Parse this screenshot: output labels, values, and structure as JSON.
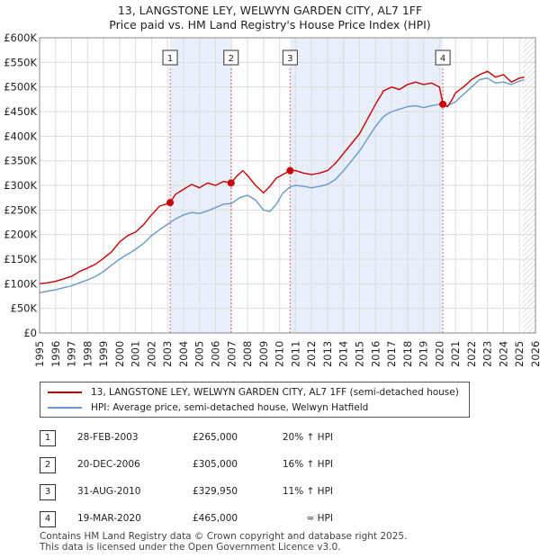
{
  "title_line1": "13, LANGSTONE LEY, WELWYN GARDEN CITY, AL7 1FF",
  "title_line2": "Price paid vs. HM Land Registry's House Price Index (HPI)",
  "colors": {
    "property": "#cc0000",
    "hpi": "#6699cc",
    "shade": "#e8eefa",
    "grid": "#dddddd",
    "vline": "#dd6666"
  },
  "chart_data": {
    "type": "line",
    "x_range": [
      1995,
      2026
    ],
    "ylim": [
      0,
      600000
    ],
    "y_ticks": [
      0,
      50000,
      100000,
      150000,
      200000,
      250000,
      300000,
      350000,
      400000,
      450000,
      500000,
      550000,
      600000
    ],
    "y_tick_labels": [
      "£0",
      "£50K",
      "£100K",
      "£150K",
      "£200K",
      "£250K",
      "£300K",
      "£350K",
      "£400K",
      "£450K",
      "£500K",
      "£550K",
      "£600K"
    ],
    "x_tick_labels": [
      "1995",
      "1996",
      "1997",
      "1998",
      "1999",
      "2000",
      "2001",
      "2002",
      "2003",
      "2004",
      "2005",
      "2006",
      "2007",
      "2008",
      "2009",
      "2010",
      "2011",
      "2012",
      "2013",
      "2014",
      "2015",
      "2016",
      "2017",
      "2018",
      "2019",
      "2020",
      "2021",
      "2022",
      "2023",
      "2024",
      "2025",
      "2026"
    ],
    "grid": true,
    "series": [
      {
        "name": "13, LANGSTONE LEY, WELWYN GARDEN CITY, AL7 1FF (semi-detached house)",
        "color": "#cc0000",
        "x": [
          1995.0,
          1995.5,
          1996.0,
          1996.5,
          1997.0,
          1997.5,
          1998.0,
          1998.5,
          1999.0,
          1999.5,
          2000.0,
          2000.5,
          2001.0,
          2001.5,
          2002.0,
          2002.5,
          2002.9,
          2003.16,
          2003.5,
          2004.0,
          2004.5,
          2005.0,
          2005.5,
          2006.0,
          2006.5,
          2006.97,
          2007.3,
          2007.7,
          2008.0,
          2008.5,
          2009.0,
          2009.4,
          2009.8,
          2010.2,
          2010.66,
          2011.0,
          2011.5,
          2012.0,
          2012.5,
          2013.0,
          2013.5,
          2014.0,
          2014.5,
          2015.0,
          2015.5,
          2016.0,
          2016.5,
          2017.0,
          2017.5,
          2018.0,
          2018.5,
          2019.0,
          2019.5,
          2020.0,
          2020.21,
          2020.5,
          2020.8,
          2021.0,
          2021.5,
          2022.0,
          2022.5,
          2023.0,
          2023.5,
          2024.0,
          2024.5,
          2025.0,
          2025.3
        ],
        "y": [
          100000,
          102000,
          105000,
          110000,
          115000,
          125000,
          132000,
          140000,
          152000,
          165000,
          185000,
          198000,
          205000,
          220000,
          240000,
          258000,
          262000,
          265000,
          282000,
          292000,
          302000,
          295000,
          305000,
          300000,
          308000,
          305000,
          318000,
          330000,
          320000,
          300000,
          285000,
          298000,
          315000,
          322000,
          329950,
          330000,
          325000,
          322000,
          325000,
          330000,
          345000,
          365000,
          385000,
          405000,
          435000,
          465000,
          492000,
          500000,
          495000,
          505000,
          510000,
          505000,
          508000,
          500000,
          465000,
          460000,
          475000,
          488000,
          500000,
          515000,
          525000,
          532000,
          520000,
          525000,
          510000,
          518000,
          520000
        ]
      },
      {
        "name": "HPI: Average price, semi-detached house, Welwyn Hatfield",
        "color": "#6699cc",
        "x": [
          1995.0,
          1995.5,
          1996.0,
          1996.5,
          1997.0,
          1997.5,
          1998.0,
          1998.5,
          1999.0,
          1999.5,
          2000.0,
          2000.5,
          2001.0,
          2001.5,
          2002.0,
          2002.5,
          2003.0,
          2003.5,
          2004.0,
          2004.5,
          2005.0,
          2005.5,
          2006.0,
          2006.5,
          2007.0,
          2007.5,
          2008.0,
          2008.5,
          2009.0,
          2009.4,
          2009.8,
          2010.2,
          2010.66,
          2011.0,
          2011.5,
          2012.0,
          2012.5,
          2013.0,
          2013.5,
          2014.0,
          2014.5,
          2015.0,
          2015.5,
          2016.0,
          2016.5,
          2017.0,
          2017.5,
          2018.0,
          2018.5,
          2019.0,
          2019.5,
          2020.0,
          2020.21,
          2020.5,
          2021.0,
          2021.5,
          2022.0,
          2022.5,
          2023.0,
          2023.5,
          2024.0,
          2024.5,
          2025.0,
          2025.3
        ],
        "y": [
          82000,
          85000,
          88000,
          92000,
          96000,
          102000,
          108000,
          115000,
          125000,
          138000,
          150000,
          160000,
          170000,
          182000,
          198000,
          210000,
          221000,
          232000,
          240000,
          245000,
          243000,
          248000,
          255000,
          262000,
          263000,
          275000,
          280000,
          270000,
          250000,
          247000,
          262000,
          284000,
          297000,
          300000,
          298000,
          295000,
          298000,
          302000,
          312000,
          330000,
          350000,
          370000,
          395000,
          420000,
          440000,
          450000,
          455000,
          460000,
          462000,
          458000,
          462000,
          465000,
          465000,
          462000,
          470000,
          485000,
          500000,
          515000,
          518000,
          508000,
          510000,
          505000,
          512000,
          515000
        ]
      }
    ],
    "sale_markers": [
      {
        "label": "1",
        "x": 2003.16,
        "y": 265000
      },
      {
        "label": "2",
        "x": 2006.97,
        "y": 305000
      },
      {
        "label": "3",
        "x": 2010.66,
        "y": 329950
      },
      {
        "label": "4",
        "x": 2020.21,
        "y": 465000
      }
    ],
    "shaded_ranges": [
      [
        2003.16,
        2006.97
      ],
      [
        2010.66,
        2020.21
      ]
    ],
    "forecast_start": 2025.2
  },
  "legend": {
    "property_label": "13, LANGSTONE LEY, WELWYN GARDEN CITY, AL7 1FF (semi-detached house)",
    "hpi_label": "HPI: Average price, semi-detached house, Welwyn Hatfield"
  },
  "sales": [
    {
      "num": "1",
      "date": "28-FEB-2003",
      "price": "£265,000",
      "hpi": "20% ↑ HPI"
    },
    {
      "num": "2",
      "date": "20-DEC-2006",
      "price": "£305,000",
      "hpi": "16% ↑ HPI"
    },
    {
      "num": "3",
      "date": "31-AUG-2010",
      "price": "£329,950",
      "hpi": "11% ↑ HPI"
    },
    {
      "num": "4",
      "date": "19-MAR-2020",
      "price": "£465,000",
      "hpi": "≈ HPI"
    }
  ],
  "footer_line1": "Contains HM Land Registry data © Crown copyright and database right 2025.",
  "footer_line2": "This data is licensed under the Open Government Licence v3.0."
}
